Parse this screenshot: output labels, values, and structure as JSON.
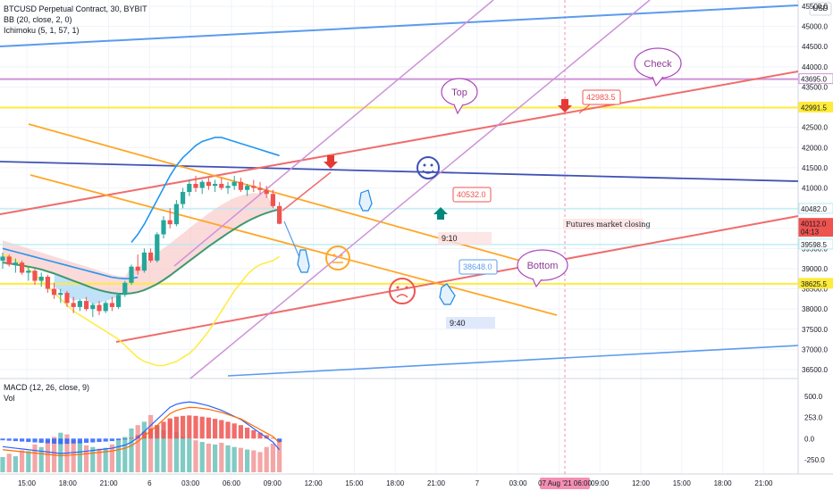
{
  "legend": {
    "line1": "BTCUSD Perpetual Contract, 30, BYBIT",
    "line2": "BB (20, close, 2, 0)",
    "line3": "Ichimoku (5, 1, 57, 1)",
    "macd": "MACD (12, 26, close, 9)",
    "vol": "Vol"
  },
  "colors": {
    "up": "#26a69a",
    "down": "#ef5350",
    "bb": "#2196f3",
    "ichimoku_cloud_up": "#a5d6f7",
    "ichimoku_cloud_down": "#f8bcbc",
    "kijun": "#3d9970",
    "chikou": "#ffeb3b",
    "trend_orange": "#ffa726",
    "trend_red": "#f06c6c",
    "trend_violet": "#ce93d8",
    "trend_blue": "#5b9bef",
    "trend_navy": "#3f51b5",
    "level_yellow": "#ffeb3b",
    "level_violet": "#ce93d8",
    "level_cyan": "#b2ebf2"
  },
  "chart_data": {
    "type": "candlestick",
    "symbol": "BTCUSD Perpetual Contract",
    "interval": "30",
    "exchange": "BYBIT",
    "y_axis_label": "USD",
    "ylim": [
      36500,
      45500
    ],
    "y_ticks": [
      "45500.0",
      "45000.0",
      "44500.0",
      "44000.0",
      "43500.0",
      "43000.0",
      "42500.0",
      "42000.0",
      "41500.0",
      "41000.0",
      "40500.0",
      "40000.0",
      "39500.0",
      "39000.0",
      "38500.0",
      "38000.0",
      "37500.0",
      "37000.0",
      "36500.0"
    ],
    "x_ticks": [
      "15:00",
      "18:00",
      "21:00",
      "6",
      "03:00",
      "06:00",
      "09:00",
      "12:00",
      "15:00",
      "18:00",
      "21:00",
      "7",
      "03:00",
      "06:00",
      "09:00",
      "12:00",
      "15:00",
      "18:00",
      "21:00"
    ],
    "x_highlight": "07 Aug '21 06:00",
    "price_tags": [
      {
        "label": "43695.0",
        "value": 43695.0,
        "style": "violet"
      },
      {
        "label": "42991.5",
        "value": 42991.5,
        "style": "yellow"
      },
      {
        "label": "40482.0",
        "value": 40482.0,
        "style": "cyan"
      },
      {
        "label": "40112.0",
        "sub": "04:13",
        "value": 40112.0,
        "style": "last"
      },
      {
        "label": "39598.5",
        "value": 39598.5,
        "style": "cyan"
      },
      {
        "label": "38625.5",
        "value": 38625.5,
        "style": "yellow"
      }
    ],
    "candles": [
      [
        39200,
        39400,
        39000,
        39300
      ],
      [
        39300,
        39350,
        39050,
        39100
      ],
      [
        39100,
        39250,
        38900,
        39150
      ],
      [
        39150,
        39200,
        38850,
        38900
      ],
      [
        38900,
        39050,
        38700,
        38950
      ],
      [
        38950,
        39000,
        38600,
        38700
      ],
      [
        38700,
        38900,
        38550,
        38800
      ],
      [
        38800,
        38850,
        38400,
        38500
      ],
      [
        38500,
        38650,
        38250,
        38350
      ],
      [
        38350,
        38500,
        38150,
        38400
      ],
      [
        38400,
        38450,
        38050,
        38150
      ],
      [
        38150,
        38300,
        37900,
        38050
      ],
      [
        38050,
        38250,
        37950,
        38200
      ],
      [
        38200,
        38300,
        37950,
        38000
      ],
      [
        38000,
        38150,
        37800,
        38100
      ],
      [
        38100,
        38200,
        37850,
        37950
      ],
      [
        37950,
        38200,
        37900,
        38150
      ],
      [
        38150,
        38300,
        37950,
        38050
      ],
      [
        38050,
        38400,
        38000,
        38350
      ],
      [
        38350,
        38700,
        38300,
        38650
      ],
      [
        38650,
        39100,
        38600,
        39050
      ],
      [
        39050,
        39350,
        38850,
        38950
      ],
      [
        38950,
        39500,
        38900,
        39400
      ],
      [
        39400,
        39500,
        39150,
        39200
      ],
      [
        39200,
        39900,
        39150,
        39850
      ],
      [
        39850,
        40300,
        39750,
        40200
      ],
      [
        40200,
        40500,
        40000,
        40100
      ],
      [
        40100,
        40700,
        40050,
        40600
      ],
      [
        40600,
        41000,
        40500,
        40900
      ],
      [
        40900,
        41200,
        40800,
        41100
      ],
      [
        41100,
        41300,
        40900,
        41000
      ],
      [
        41000,
        41200,
        40850,
        41150
      ],
      [
        41150,
        41250,
        40950,
        41050
      ],
      [
        41050,
        41200,
        40900,
        41100
      ],
      [
        41100,
        41250,
        40950,
        41000
      ],
      [
        41000,
        41150,
        40850,
        41050
      ],
      [
        41050,
        41300,
        40950,
        41150
      ],
      [
        41150,
        41250,
        40900,
        40950
      ],
      [
        40950,
        41100,
        40800,
        41050
      ],
      [
        41050,
        41200,
        40900,
        41000
      ],
      [
        41000,
        41150,
        40850,
        40950
      ],
      [
        40950,
        41050,
        40750,
        40850
      ],
      [
        40850,
        40950,
        40500,
        40550
      ],
      [
        40550,
        40650,
        40100,
        40112
      ]
    ],
    "series": [
      {
        "name": "BB upper",
        "values": [
          39900,
          39850,
          39800,
          39750,
          39700,
          39680,
          39650,
          39620,
          39600,
          39580,
          39560,
          39550,
          39540,
          39520,
          39500,
          39480,
          39460,
          39450,
          39470,
          39520,
          39650,
          39850,
          40100,
          40400,
          40700,
          41000,
          41300,
          41550,
          41750,
          41900,
          42050,
          42150,
          42200,
          42250,
          42250,
          42200,
          42150,
          42100,
          42050,
          42000,
          41950,
          41900,
          41850,
          41800
        ]
      },
      {
        "name": "BB basis",
        "values": [
          39700,
          39650,
          39600,
          39550,
          39500,
          39450,
          39400,
          39350,
          39300,
          39250,
          39200,
          39150,
          39100,
          39050,
          39000,
          38950,
          38900,
          38850,
          38820,
          38800,
          38800,
          38820,
          38870,
          38950,
          39050,
          39150,
          39270,
          39400,
          39520,
          39650,
          39780,
          39900,
          40020,
          40130,
          40230,
          40320,
          40400,
          40460,
          40500,
          40520,
          40520,
          40500,
          40450,
          40400
        ]
      },
      {
        "name": "BB lower",
        "values": [
          39350,
          39300,
          39200,
          39100,
          39000,
          38850,
          38700,
          38550,
          38400,
          38250,
          38100,
          37950,
          37850,
          37750,
          37650,
          37550,
          37450,
          37350,
          37250,
          37100,
          36950,
          36800,
          36700,
          36650,
          36600,
          36600,
          36650,
          36700,
          36800,
          36900,
          37050,
          37250,
          37450,
          37700,
          37950,
          38200,
          38450,
          38650,
          38850,
          39000,
          39100,
          39150,
          39200,
          39300
        ]
      },
      {
        "name": "Kijun",
        "values": [
          39150,
          39130,
          39100,
          39080,
          39050,
          39020,
          38980,
          38930,
          38880,
          38820,
          38760,
          38700,
          38640,
          38580,
          38520,
          38470,
          38430,
          38400,
          38380,
          38380,
          38390,
          38420,
          38470,
          38540,
          38620,
          38720,
          38830,
          38950,
          39070,
          39190,
          39310,
          39430,
          39550,
          39660,
          39770,
          39880,
          39980,
          40080,
          40170,
          40250,
          40320,
          40380,
          40430,
          40470
        ]
      }
    ],
    "horizontal_levels": [
      {
        "value": 43695.0,
        "color": "violet"
      },
      {
        "value": 42991.5,
        "color": "yellow"
      },
      {
        "value": 40482.0,
        "color": "cyan"
      },
      {
        "value": 39598.5,
        "color": "cyan"
      },
      {
        "value": 38625.5,
        "color": "yellow"
      }
    ],
    "annotations": [
      {
        "text": "Top",
        "kind": "bubble"
      },
      {
        "text": "Check",
        "kind": "bubble"
      },
      {
        "text": "Bottom",
        "kind": "bubble"
      },
      {
        "text": "42983.5",
        "kind": "price-label"
      },
      {
        "text": "40532.0",
        "kind": "price-label"
      },
      {
        "text": "38648.0",
        "kind": "price-label"
      },
      {
        "text": "9:10",
        "kind": "time-box"
      },
      {
        "text": "9:40",
        "kind": "time-box"
      },
      {
        "text": "Futures market closing",
        "kind": "note"
      }
    ],
    "macd": {
      "y_ticks": [
        "500.0",
        "253.0",
        "0.0",
        "-250.0"
      ],
      "ylim": [
        -400,
        650
      ],
      "histogram": [
        -20,
        -25,
        -30,
        -35,
        -40,
        -45,
        -50,
        -55,
        -60,
        -65,
        -62,
        -58,
        -55,
        -50,
        -45,
        -40,
        -35,
        -30,
        -20,
        -10,
        10,
        40,
        80,
        120,
        160,
        200,
        240,
        260,
        270,
        275,
        270,
        260,
        250,
        235,
        220,
        200,
        180,
        160,
        130,
        100,
        70,
        40,
        10,
        -40
      ],
      "volume": [
        180,
        220,
        190,
        260,
        250,
        330,
        300,
        380,
        420,
        470,
        450,
        380,
        360,
        320,
        300,
        280,
        290,
        330,
        380,
        420,
        520,
        560,
        600,
        680,
        560,
        500,
        620,
        480,
        420,
        400,
        380,
        360,
        340,
        330,
        350,
        320,
        300,
        290,
        270,
        260,
        240,
        300,
        340,
        390
      ]
    }
  }
}
